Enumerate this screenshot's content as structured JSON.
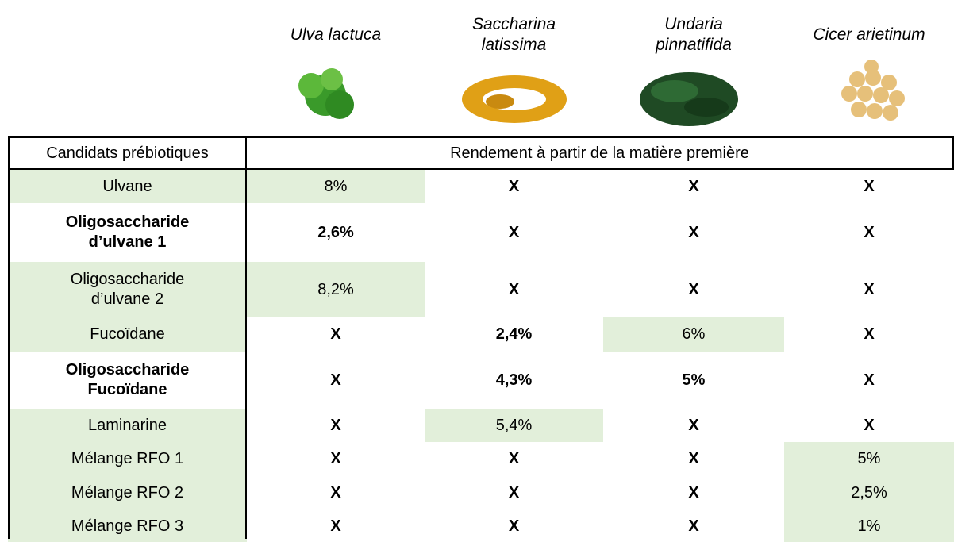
{
  "species": [
    "Ulva lactuca",
    "Saccharina\nlatissima",
    "Undaria\npinnatifida",
    "Cicer arietinum"
  ],
  "table": {
    "header": [
      "Candidats prébiotiques",
      "Rendement à partir de la matière première"
    ],
    "rows": [
      [
        "Ulvane",
        "8%",
        "X",
        "X",
        "X"
      ],
      [
        "Oligosaccharide\nd’ulvane 1",
        "2,6%",
        "X",
        "X",
        "X"
      ],
      [
        "Oligosaccharide\nd’ulvane 2",
        "8,2%",
        "X",
        "X",
        "X"
      ],
      [
        "Fucoïdane",
        "X",
        "2,4%",
        "6%",
        "X"
      ],
      [
        "Oligosaccharide\nFucoïdane",
        "X",
        "4,3%",
        "5%",
        "X"
      ],
      [
        "Laminarine",
        "X",
        "5,4%",
        "X",
        "X"
      ],
      [
        "Mélange RFO 1",
        "X",
        "X",
        "X",
        "5%"
      ],
      [
        "Mélange RFO 2",
        "X",
        "X",
        "X",
        "2,5%"
      ],
      [
        "Mélange RFO 3",
        "X",
        "X",
        "X",
        "1%"
      ]
    ]
  }
}
